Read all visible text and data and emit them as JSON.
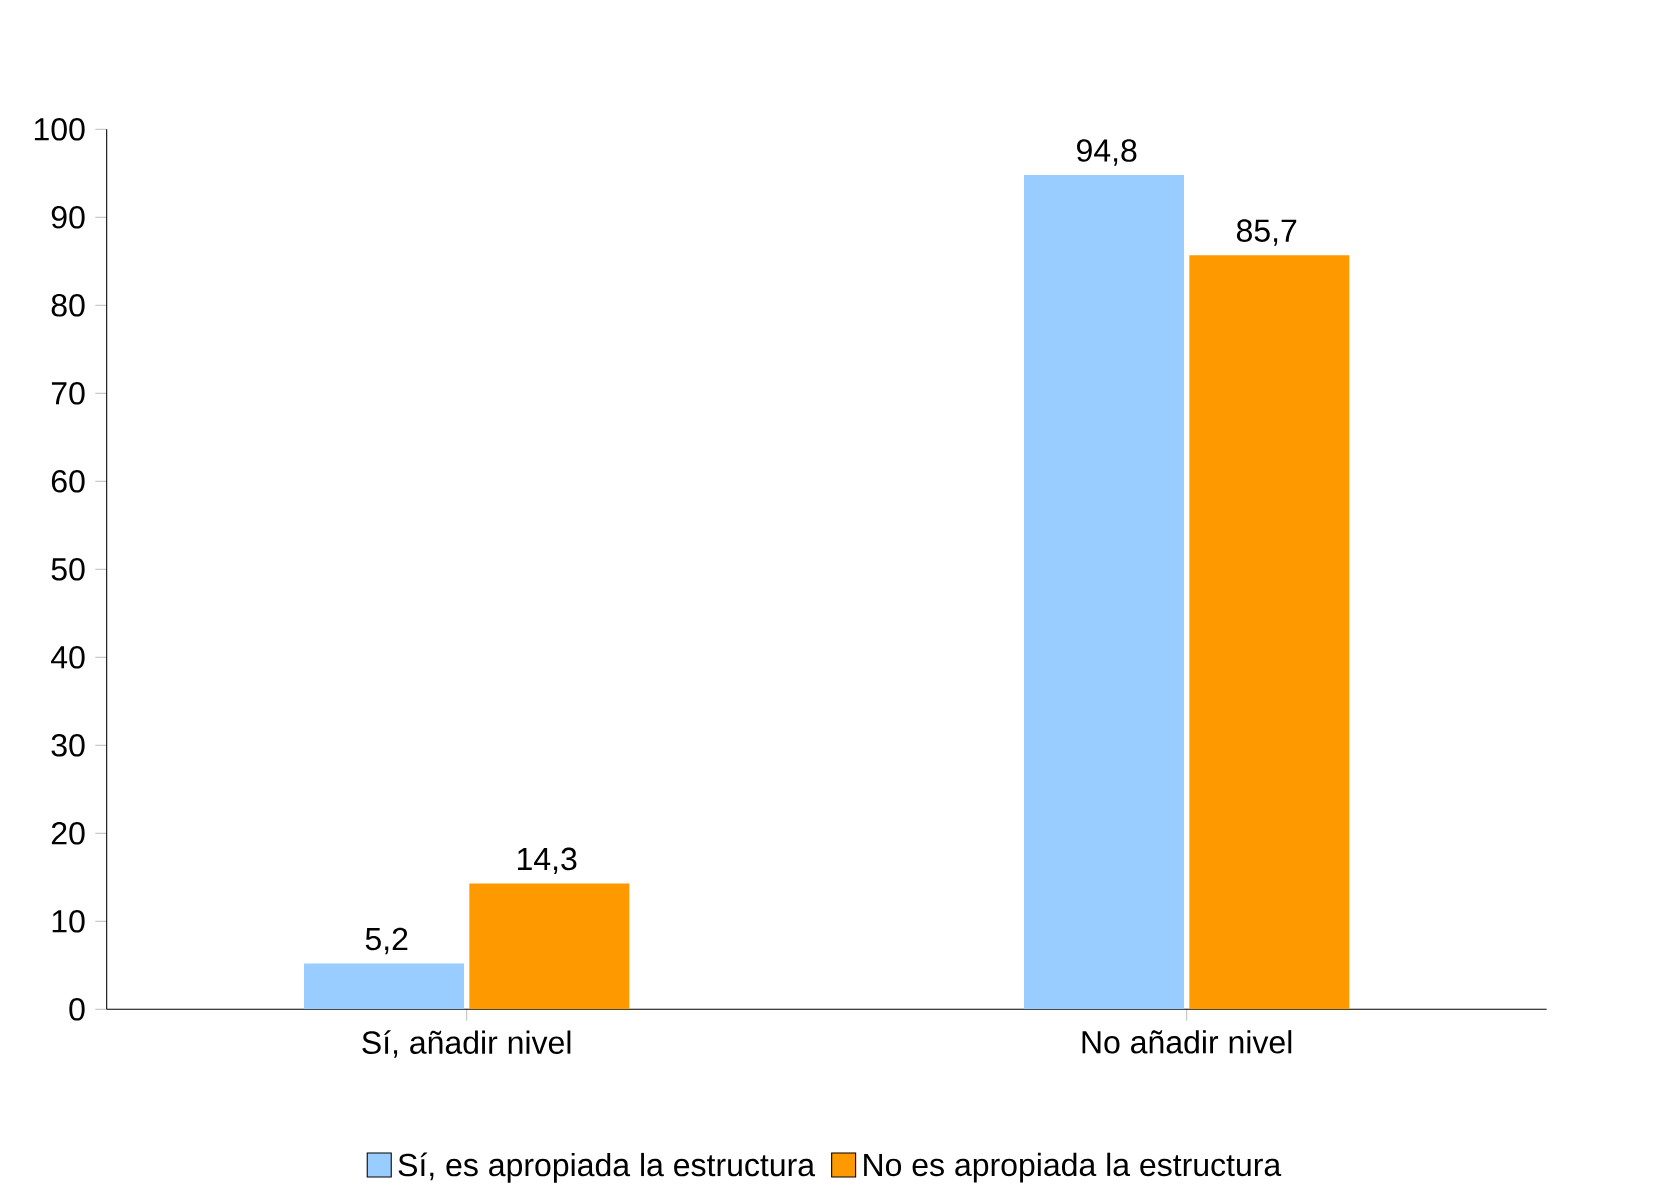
{
  "chart_data": {
    "type": "bar",
    "categories": [
      "Sí, añadir nivel",
      "No añadir nivel"
    ],
    "series": [
      {
        "name": "Sí, es apropiada la estructura",
        "color": "#99ccff",
        "values": [
          5.2,
          94.8
        ],
        "value_labels": [
          "5,2",
          "94,8"
        ]
      },
      {
        "name": "No es apropiada la estructura",
        "color": "#ff9900",
        "values": [
          14.3,
          85.7
        ],
        "value_labels": [
          "14,3",
          "85,7"
        ]
      }
    ],
    "ylim": [
      0,
      100
    ],
    "yticks": [
      0,
      10,
      20,
      30,
      40,
      50,
      60,
      70,
      80,
      90,
      100
    ],
    "grid": false,
    "legend": "bottom"
  }
}
